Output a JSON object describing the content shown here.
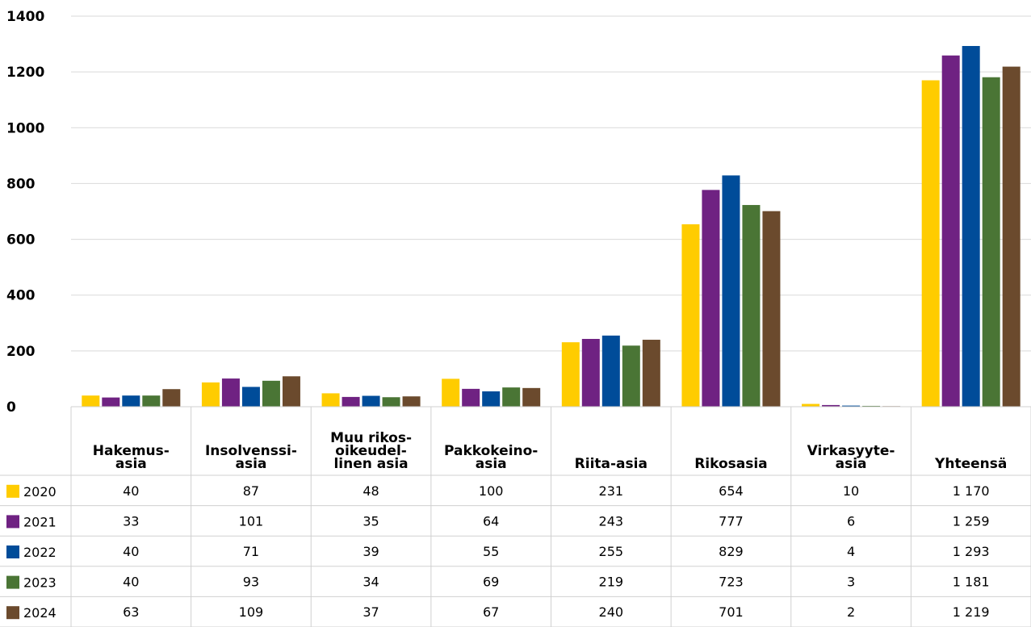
{
  "chart_data": {
    "type": "bar",
    "categories": [
      [
        "Hakemus-",
        "asia"
      ],
      [
        "Insolvenssi-",
        "asia"
      ],
      [
        "Muu rikos-",
        "oikeudel-",
        "linen asia"
      ],
      [
        "Pakkokeino-",
        "asia"
      ],
      [
        "Riita-asia"
      ],
      [
        "Rikosasia"
      ],
      [
        "Virkasyyte-",
        "asia"
      ],
      [
        "Yhteensä"
      ]
    ],
    "series": [
      {
        "name": "2020",
        "color": "#FFCC00",
        "values": [
          40,
          87,
          48,
          100,
          231,
          654,
          10,
          1170
        ],
        "labels": [
          "40",
          "87",
          "48",
          "100",
          "231",
          "654",
          "10",
          "1 170"
        ]
      },
      {
        "name": "2021",
        "color": "#6F2282",
        "values": [
          33,
          101,
          35,
          64,
          243,
          777,
          6,
          1259
        ],
        "labels": [
          "33",
          "101",
          "35",
          "64",
          "243",
          "777",
          "6",
          "1 259"
        ]
      },
      {
        "name": "2022",
        "color": "#004C99",
        "values": [
          40,
          71,
          39,
          55,
          255,
          829,
          4,
          1293
        ],
        "labels": [
          "40",
          "71",
          "39",
          "55",
          "255",
          "829",
          "4",
          "1 293"
        ]
      },
      {
        "name": "2023",
        "color": "#4A7535",
        "values": [
          40,
          93,
          34,
          69,
          219,
          723,
          3,
          1181
        ],
        "labels": [
          "40",
          "93",
          "34",
          "69",
          "219",
          "723",
          "3",
          "1 181"
        ]
      },
      {
        "name": "2024",
        "color": "#6B4A2D",
        "values": [
          63,
          109,
          37,
          67,
          240,
          701,
          2,
          1219
        ],
        "labels": [
          "63",
          "109",
          "37",
          "67",
          "240",
          "701",
          "2",
          "1 219"
        ]
      }
    ],
    "yticks": [
      0,
      200,
      400,
      600,
      800,
      1000,
      1200,
      1400
    ],
    "ylim": [
      0,
      1400
    ],
    "grid": true,
    "legend": "data-table"
  }
}
